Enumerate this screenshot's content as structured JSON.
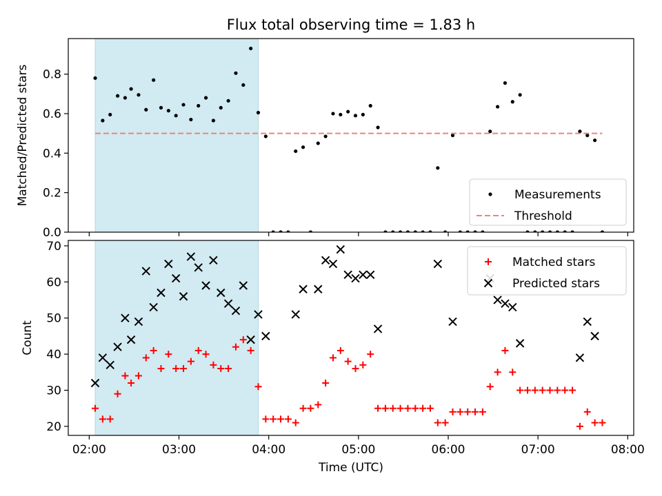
{
  "title": "Flux total observing time = 1.83 h",
  "colors": {
    "shade": "#add8e6",
    "threshold": "#f08080",
    "measurement": "#000000",
    "matched": "#ff0000",
    "predicted": "#000000"
  },
  "chart_data": [
    {
      "type": "scatter",
      "ylabel": "Matched/Predicted stars",
      "ylim": [
        0,
        0.98
      ],
      "yticks": [
        {
          "v": 0.0,
          "label": "0.0"
        },
        {
          "v": 0.2,
          "label": "0.2"
        },
        {
          "v": 0.4,
          "label": "0.4"
        },
        {
          "v": 0.6,
          "label": "0.6"
        },
        {
          "v": 0.8,
          "label": "0.8"
        }
      ],
      "shaded_region": {
        "start": "02:04",
        "end": "03:53"
      },
      "legend_position": "lower-right",
      "series": [
        {
          "name": "Measurements",
          "marker": "dot",
          "points": [
            [
              "02:04",
              0.78
            ],
            [
              "02:09",
              0.565
            ],
            [
              "02:14",
              0.595
            ],
            [
              "02:19",
              0.69
            ],
            [
              "02:24",
              0.68
            ],
            [
              "02:28",
              0.725
            ],
            [
              "02:33",
              0.695
            ],
            [
              "02:38",
              0.62
            ],
            [
              "02:43",
              0.77
            ],
            [
              "02:48",
              0.63
            ],
            [
              "02:53",
              0.615
            ],
            [
              "02:58",
              0.59
            ],
            [
              "03:03",
              0.645
            ],
            [
              "03:08",
              0.57
            ],
            [
              "03:13",
              0.64
            ],
            [
              "03:18",
              0.68
            ],
            [
              "03:23",
              0.565
            ],
            [
              "03:28",
              0.63
            ],
            [
              "03:33",
              0.665
            ],
            [
              "03:38",
              0.805
            ],
            [
              "03:43",
              0.745
            ],
            [
              "03:48",
              0.93
            ],
            [
              "03:53",
              0.605
            ],
            [
              "03:58",
              0.485
            ],
            [
              "04:03",
              0.0
            ],
            [
              "04:08",
              0.0
            ],
            [
              "04:13",
              0.0
            ],
            [
              "04:18",
              0.41
            ],
            [
              "04:23",
              0.43
            ],
            [
              "04:28",
              0.0
            ],
            [
              "04:33",
              0.45
            ],
            [
              "04:38",
              0.485
            ],
            [
              "04:43",
              0.6
            ],
            [
              "04:48",
              0.595
            ],
            [
              "04:53",
              0.61
            ],
            [
              "04:58",
              0.59
            ],
            [
              "05:03",
              0.595
            ],
            [
              "05:08",
              0.64
            ],
            [
              "05:13",
              0.53
            ],
            [
              "05:18",
              0.0
            ],
            [
              "05:23",
              0.0
            ],
            [
              "05:28",
              0.0
            ],
            [
              "05:33",
              0.0
            ],
            [
              "05:38",
              0.0
            ],
            [
              "05:43",
              0.0
            ],
            [
              "05:48",
              0.0
            ],
            [
              "05:53",
              0.325
            ],
            [
              "05:58",
              0.0
            ],
            [
              "06:03",
              0.49
            ],
            [
              "06:08",
              0.0
            ],
            [
              "06:13",
              0.0
            ],
            [
              "06:18",
              0.0
            ],
            [
              "06:23",
              0.0
            ],
            [
              "06:28",
              0.51
            ],
            [
              "06:33",
              0.635
            ],
            [
              "06:38",
              0.755
            ],
            [
              "06:43",
              0.66
            ],
            [
              "06:48",
              0.695
            ],
            [
              "06:53",
              0.0
            ],
            [
              "06:58",
              0.0
            ],
            [
              "07:03",
              0.0
            ],
            [
              "07:08",
              0.0
            ],
            [
              "07:13",
              0.0
            ],
            [
              "07:18",
              0.0
            ],
            [
              "07:23",
              0.0
            ],
            [
              "07:28",
              0.51
            ],
            [
              "07:33",
              0.49
            ],
            [
              "07:38",
              0.465
            ],
            [
              "07:43",
              0.0
            ]
          ]
        },
        {
          "name": "Threshold",
          "marker": "dashed-line",
          "line": {
            "start": "02:04",
            "end": "07:43",
            "value": 0.5
          }
        }
      ]
    },
    {
      "type": "scatter",
      "xlabel": "Time (UTC)",
      "ylabel": "Count",
      "ylim": [
        17.5,
        71.5
      ],
      "xlim": [
        "01:46",
        "08:04"
      ],
      "xticks": [
        "02:00",
        "03:00",
        "04:00",
        "05:00",
        "06:00",
        "07:00",
        "08:00"
      ],
      "yticks": [
        {
          "v": 20,
          "label": "20"
        },
        {
          "v": 30,
          "label": "30"
        },
        {
          "v": 40,
          "label": "40"
        },
        {
          "v": 50,
          "label": "50"
        },
        {
          "v": 60,
          "label": "60"
        },
        {
          "v": 70,
          "label": "70"
        }
      ],
      "shaded_region": {
        "start": "02:04",
        "end": "03:53"
      },
      "legend_position": "upper-right",
      "series": [
        {
          "name": "Matched stars",
          "marker": "plus",
          "points": [
            [
              "02:04",
              25
            ],
            [
              "02:09",
              22
            ],
            [
              "02:14",
              22
            ],
            [
              "02:19",
              29
            ],
            [
              "02:24",
              34
            ],
            [
              "02:28",
              32
            ],
            [
              "02:33",
              34
            ],
            [
              "02:38",
              39
            ],
            [
              "02:43",
              41
            ],
            [
              "02:48",
              36
            ],
            [
              "02:53",
              40
            ],
            [
              "02:58",
              36
            ],
            [
              "03:03",
              36
            ],
            [
              "03:08",
              38
            ],
            [
              "03:13",
              41
            ],
            [
              "03:18",
              40
            ],
            [
              "03:23",
              37
            ],
            [
              "03:28",
              36
            ],
            [
              "03:33",
              36
            ],
            [
              "03:38",
              42
            ],
            [
              "03:43",
              44
            ],
            [
              "03:48",
              41
            ],
            [
              "03:53",
              31
            ],
            [
              "03:58",
              22
            ],
            [
              "04:03",
              22
            ],
            [
              "04:08",
              22
            ],
            [
              "04:13",
              22
            ],
            [
              "04:18",
              21
            ],
            [
              "04:23",
              25
            ],
            [
              "04:28",
              25
            ],
            [
              "04:33",
              26
            ],
            [
              "04:38",
              32
            ],
            [
              "04:43",
              39
            ],
            [
              "04:48",
              41
            ],
            [
              "04:53",
              38
            ],
            [
              "04:58",
              36
            ],
            [
              "05:03",
              37
            ],
            [
              "05:08",
              40
            ],
            [
              "05:13",
              25
            ],
            [
              "05:18",
              25
            ],
            [
              "05:23",
              25
            ],
            [
              "05:28",
              25
            ],
            [
              "05:33",
              25
            ],
            [
              "05:38",
              25
            ],
            [
              "05:43",
              25
            ],
            [
              "05:48",
              25
            ],
            [
              "05:53",
              21
            ],
            [
              "05:58",
              21
            ],
            [
              "06:03",
              24
            ],
            [
              "06:08",
              24
            ],
            [
              "06:13",
              24
            ],
            [
              "06:18",
              24
            ],
            [
              "06:23",
              24
            ],
            [
              "06:28",
              31
            ],
            [
              "06:33",
              35
            ],
            [
              "06:38",
              41
            ],
            [
              "06:43",
              35
            ],
            [
              "06:48",
              30
            ],
            [
              "06:53",
              30
            ],
            [
              "06:58",
              30
            ],
            [
              "07:03",
              30
            ],
            [
              "07:08",
              30
            ],
            [
              "07:13",
              30
            ],
            [
              "07:18",
              30
            ],
            [
              "07:23",
              30
            ],
            [
              "07:28",
              20
            ],
            [
              "07:33",
              24
            ],
            [
              "07:38",
              21
            ],
            [
              "07:43",
              21
            ]
          ]
        },
        {
          "name": "Predicted stars",
          "marker": "x",
          "points": [
            [
              "02:04",
              32
            ],
            [
              "02:09",
              39
            ],
            [
              "02:14",
              37
            ],
            [
              "02:19",
              42
            ],
            [
              "02:24",
              50
            ],
            [
              "02:28",
              44
            ],
            [
              "02:33",
              49
            ],
            [
              "02:38",
              63
            ],
            [
              "02:43",
              53
            ],
            [
              "02:48",
              57
            ],
            [
              "02:53",
              65
            ],
            [
              "02:58",
              61
            ],
            [
              "03:03",
              56
            ],
            [
              "03:08",
              67
            ],
            [
              "03:13",
              64
            ],
            [
              "03:18",
              59
            ],
            [
              "03:23",
              66
            ],
            [
              "03:28",
              57
            ],
            [
              "03:33",
              54
            ],
            [
              "03:38",
              52
            ],
            [
              "03:43",
              59
            ],
            [
              "03:48",
              44
            ],
            [
              "03:53",
              51
            ],
            [
              "03:58",
              45
            ],
            [
              "04:18",
              51
            ],
            [
              "04:23",
              58
            ],
            [
              "04:33",
              58
            ],
            [
              "04:38",
              66
            ],
            [
              "04:43",
              65
            ],
            [
              "04:48",
              69
            ],
            [
              "04:53",
              62
            ],
            [
              "04:58",
              61
            ],
            [
              "05:03",
              62
            ],
            [
              "05:08",
              62
            ],
            [
              "05:13",
              47
            ],
            [
              "05:53",
              65
            ],
            [
              "06:03",
              49
            ],
            [
              "06:28",
              61
            ],
            [
              "06:33",
              55
            ],
            [
              "06:38",
              54
            ],
            [
              "06:43",
              53
            ],
            [
              "06:48",
              43
            ],
            [
              "07:28",
              39
            ],
            [
              "07:33",
              49
            ],
            [
              "07:38",
              45
            ]
          ]
        }
      ]
    }
  ]
}
